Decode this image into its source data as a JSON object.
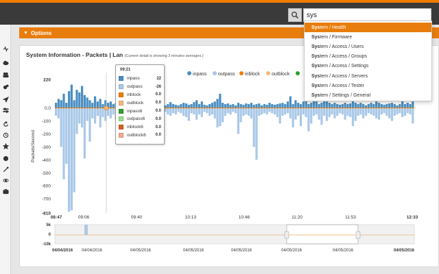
{
  "search": {
    "value": "sys"
  },
  "options_bar": {
    "label": "Options"
  },
  "panel": {
    "title": "System Information - Packets | Lan",
    "subtitle": "(Current detail is showing 3 minutes averages.)"
  },
  "dropdown": {
    "items": [
      {
        "bold": "Sys",
        "rest": "tem / Health",
        "active": true
      },
      {
        "bold": "Sys",
        "rest": "tem / Firmware"
      },
      {
        "bold": "Sys",
        "rest": "tem / Access / Users"
      },
      {
        "bold": "Sys",
        "rest": "tem / Access / Groups"
      },
      {
        "bold": "Sys",
        "rest": "tem / Access / Settings"
      },
      {
        "bold": "Sys",
        "rest": "tem / Access / Servers"
      },
      {
        "bold": "Sys",
        "rest": "tem / Access / Tester"
      },
      {
        "bold": "Sys",
        "rest": "tem / Settings / General"
      }
    ]
  },
  "tooltip": {
    "time": "09:21",
    "rows": [
      {
        "label": "inpass",
        "value": "22",
        "color": "#4a8ec2"
      },
      {
        "label": "outpass",
        "value": "-26",
        "color": "#a9c8e8"
      },
      {
        "label": "inblock",
        "value": "0.0",
        "color": "#f07b00"
      },
      {
        "label": "outblock",
        "value": "0.0",
        "color": "#f5b87a"
      },
      {
        "label": "inpass6",
        "value": "0.0",
        "color": "#2ca02c"
      },
      {
        "label": "outpass6",
        "value": "0.0",
        "color": "#98df8a"
      },
      {
        "label": "inblock6",
        "value": "0.0",
        "color": "#d65f1f"
      },
      {
        "label": "outblock6",
        "value": "0.0",
        "color": "#f5a98f"
      }
    ]
  },
  "sidebar_icons": [
    "heartbeat-icon",
    "cloud-icon",
    "users-icon",
    "cogs-icon",
    "location-arrow-icon",
    "sliders-icon",
    "refresh-icon",
    "history-icon",
    "star-icon",
    "circle-icon",
    "magic-icon",
    "eye-icon",
    "briefcase-icon"
  ],
  "chart_data": {
    "type": "bar",
    "legend": [
      {
        "name": "inpass",
        "color": "#4a8ec2"
      },
      {
        "name": "outpass",
        "color": "#a9c8e8"
      },
      {
        "name": "inblock",
        "color": "#f07b00"
      },
      {
        "name": "outblock",
        "color": "#f5b87a"
      }
    ],
    "ylabel": "Packets/Second",
    "yticks": [
      220,
      0.0,
      -100,
      -200,
      -300,
      -400,
      -500,
      -600,
      -700,
      -810
    ],
    "ylim": [
      -810,
      220
    ],
    "xticks": [
      "08:47",
      "09:06",
      "09:40",
      "10:13",
      "10:46",
      "11:20",
      "11:53",
      "12:33"
    ],
    "xticks_bold": [
      "08:47",
      "12:33"
    ],
    "series": [
      {
        "name": "inpass",
        "color": "#4a8ec2",
        "values": [
          40,
          70,
          60,
          110,
          40,
          130,
          180,
          60,
          140,
          120,
          170,
          100,
          80,
          60,
          40,
          90,
          50,
          70,
          30,
          60,
          40,
          50,
          30,
          40,
          60,
          35,
          30,
          45,
          70,
          40,
          30,
          25,
          20,
          35,
          25,
          30,
          20,
          40,
          25,
          30,
          35,
          40,
          20,
          30,
          45,
          30,
          25,
          20,
          30,
          40,
          35,
          25,
          30,
          45,
          60,
          30,
          50,
          25,
          20,
          30,
          40,
          50,
          70,
          110,
          40,
          30,
          35,
          25,
          30,
          20,
          40,
          30,
          25,
          35,
          30,
          40,
          25,
          30,
          35,
          20,
          30,
          25,
          40,
          30,
          25,
          30,
          35,
          40,
          30,
          50,
          90,
          30,
          60,
          40,
          30,
          50,
          80,
          30,
          40,
          60,
          50,
          30,
          40,
          70,
          50,
          40,
          30,
          40,
          30,
          25,
          30,
          40,
          30,
          35,
          60,
          40,
          30,
          40,
          30,
          20,
          30,
          40,
          30,
          50,
          40,
          30,
          25,
          30,
          35,
          40,
          30,
          20,
          30,
          60,
          30,
          40,
          30,
          50
        ]
      },
      {
        "name": "outpass",
        "color": "#a9c8e8",
        "values": [
          -60,
          -80,
          -300,
          -550,
          -430,
          -800,
          -790,
          -650,
          -200,
          -120,
          -150,
          -390,
          -100,
          -260,
          -80,
          -120,
          -60,
          -150,
          -70,
          -100,
          -60,
          -80,
          -50,
          -90,
          -70,
          -50,
          -80,
          -60,
          -60,
          -50,
          -40,
          -60,
          -80,
          -50,
          -40,
          -30,
          -50,
          -60,
          -40,
          -50,
          -80,
          -40,
          -30,
          -50,
          -60,
          -40,
          -50,
          -30,
          -40,
          -60,
          -70,
          -100,
          -40,
          -50,
          -90,
          -50,
          -70,
          -30,
          -40,
          -60,
          -50,
          -80,
          -150,
          -140,
          -110,
          -60,
          -40,
          -50,
          -30,
          -40,
          -200,
          -110,
          -60,
          -50,
          -60,
          -80,
          -300,
          -400,
          -60,
          -50,
          -40,
          -50,
          -30,
          -40,
          -50,
          -70,
          -120,
          -60,
          -50,
          -40,
          -80,
          -150,
          -90,
          -60,
          -140,
          -50,
          -70,
          -180,
          -120,
          -60,
          -50,
          -90,
          -130,
          -60,
          -100,
          -70,
          -50,
          -80,
          -60,
          -40,
          -50,
          -90,
          -60,
          -70,
          -140,
          -100,
          -60,
          -50,
          -80,
          -60,
          -40,
          -50,
          -60,
          -80,
          -90,
          -50,
          -40,
          -60,
          -80,
          -100,
          -60,
          -50,
          -40,
          -70,
          -60,
          -40,
          -50,
          -120
        ]
      },
      {
        "name": "inblock",
        "color": "#f07b00",
        "values": [
          0
        ]
      }
    ],
    "navigator": {
      "yticks": [
        "5k",
        "0",
        "-10k"
      ],
      "xticks": [
        "04/04/2016",
        "04/04/2016",
        "04/05/2016",
        "04/05/2016",
        "04/05/2016",
        "04/05/2016",
        "04/05/2016",
        "04/05/2016"
      ],
      "xticks_bold": [
        "04/04/2016",
        "04/05/2016"
      ]
    }
  }
}
